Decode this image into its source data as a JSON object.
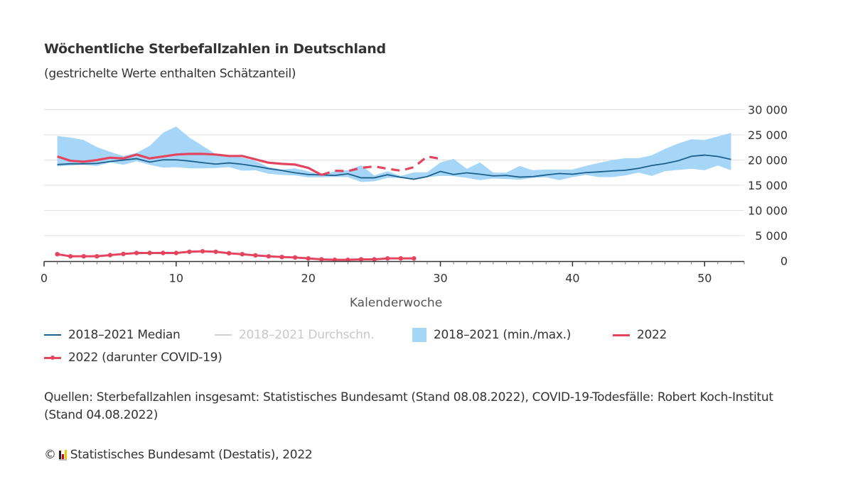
{
  "header": {
    "title": "Wöchentliche Sterbefallzahlen in Deutschland",
    "subtitle": "(gestrichelte Werte enthalten Schätzanteil)"
  },
  "legend": {
    "median": "2018–2021 Median",
    "average": "2018–2021 Durchschn.",
    "range": "2018–2021 (min./max.)",
    "y2022": "2022",
    "covid": "2022 (darunter COVID-19)"
  },
  "footer": {
    "sources": "Quellen: Sterbefallzahlen insgesamt: Statistisches Bundesamt (Stand 08.08.2022), COVID-19-Todesfälle: Robert Koch-Institut (Stand 04.08.2022)",
    "copyright": "Statistisches Bundesamt (Destatis), 2022",
    "copyright_symbol": "©"
  },
  "colors": {
    "median": "#1b5f8c",
    "average": "#cccccc",
    "range": "#a6d6f7",
    "y2022": "#e3455f",
    "covid": "#e3455f"
  },
  "chart_data": {
    "type": "line",
    "xlabel": "Kalenderwoche",
    "ylabel": "",
    "xlim": [
      0,
      53
    ],
    "ylim": [
      0,
      30000
    ],
    "x_ticks": [
      0,
      10,
      20,
      30,
      40,
      50
    ],
    "y_ticks": [
      0,
      5000,
      10000,
      15000,
      20000,
      25000,
      30000
    ],
    "y_tick_labels": [
      "0",
      "5 000",
      "10 000",
      "15 000",
      "20 000",
      "25 000",
      "30 000"
    ],
    "grid": "horizontal",
    "legend_position": "bottom",
    "weeks": [
      1,
      2,
      3,
      4,
      5,
      6,
      7,
      8,
      9,
      10,
      11,
      12,
      13,
      14,
      15,
      16,
      17,
      18,
      19,
      20,
      21,
      22,
      23,
      24,
      25,
      26,
      27,
      28,
      29,
      30,
      31,
      32,
      33,
      34,
      35,
      36,
      37,
      38,
      39,
      40,
      41,
      42,
      43,
      44,
      45,
      46,
      47,
      48,
      49,
      50,
      51,
      52
    ],
    "series": [
      {
        "name": "2018–2021 Median",
        "kind": "line",
        "values": [
          19100,
          19250,
          19250,
          19330,
          19700,
          19990,
          20270,
          19600,
          20040,
          20040,
          19800,
          19470,
          19190,
          19430,
          19150,
          18770,
          18300,
          17920,
          17460,
          17130,
          17040,
          16940,
          17270,
          16470,
          16470,
          17080,
          16570,
          16190,
          16710,
          17740,
          17130,
          17460,
          17180,
          16850,
          16940,
          16610,
          16710,
          17040,
          17320,
          17180,
          17500,
          17650,
          17830,
          17970,
          18350,
          18910,
          19290,
          19850,
          20740,
          20980,
          20700,
          20130
        ]
      },
      {
        "name": "2018–2021 (min./max.)",
        "kind": "band",
        "min": [
          18730,
          18910,
          19050,
          18820,
          19530,
          19050,
          19760,
          19050,
          18490,
          18590,
          18350,
          18350,
          18420,
          18590,
          17880,
          17950,
          17270,
          17040,
          16940,
          16570,
          16570,
          16660,
          16610,
          15630,
          15770,
          16470,
          16470,
          16330,
          16610,
          16850,
          16800,
          16470,
          16000,
          16330,
          16240,
          16090,
          16470,
          16570,
          16000,
          16610,
          17040,
          16610,
          16610,
          16940,
          17500,
          16850,
          17790,
          18020,
          18260,
          17970,
          18910,
          17970
        ],
        "max": [
          24780,
          24450,
          23980,
          22570,
          21640,
          20800,
          21400,
          22810,
          25390,
          26660,
          24450,
          22810,
          21170,
          20800,
          20500,
          19800,
          18590,
          18120,
          18350,
          17790,
          16940,
          17790,
          17970,
          18960,
          16940,
          17790,
          16850,
          17550,
          17550,
          19530,
          20230,
          18260,
          19530,
          17500,
          17500,
          18820,
          17970,
          18120,
          18120,
          18120,
          18820,
          19430,
          19990,
          20370,
          20370,
          20940,
          22200,
          23280,
          24120,
          23980,
          24690,
          25390
        ]
      },
      {
        "name": "2022",
        "kind": "line",
        "values": [
          20700,
          19850,
          19670,
          19990,
          20460,
          20320,
          21080,
          20320,
          20700,
          21080,
          21220,
          21220,
          21080,
          20800,
          20800,
          20130,
          19470,
          19240,
          19100,
          18440,
          17040,
          17880,
          17790,
          18440,
          18730,
          18260,
          17880,
          18590,
          20700,
          20230
        ],
        "estimated_from_week": 21
      },
      {
        "name": "2022 (darunter COVID-19)",
        "kind": "line-markers",
        "values": [
          1310,
          890,
          890,
          890,
          1130,
          1360,
          1550,
          1550,
          1550,
          1550,
          1790,
          1880,
          1790,
          1500,
          1310,
          1080,
          890,
          750,
          660,
          470,
          280,
          190,
          190,
          280,
          280,
          470,
          470,
          470
        ]
      }
    ]
  }
}
